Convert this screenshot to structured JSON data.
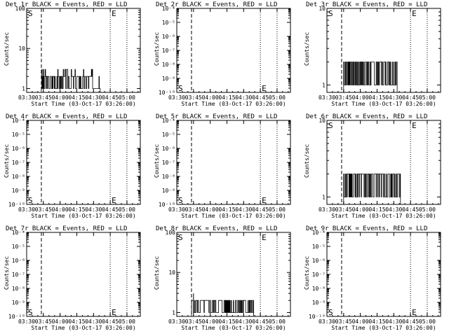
{
  "figure": {
    "colors": {
      "events": "#000000",
      "lld": "#ff0000",
      "background": "#ffffff"
    }
  },
  "chart_data": [
    {
      "type": "line",
      "title": "Det 1r BLACK = Events, RED = LLD",
      "xlabel": "Start Time (03-Oct-17 03:26:00)",
      "ylabel": "Counts/sec",
      "xticks": [
        "03:30",
        "03:45",
        "04:00",
        "04:15",
        "04:30",
        "04:45",
        "05:00"
      ],
      "xlim": [
        3.5,
        5.2
      ],
      "ylog": true,
      "ylim": [
        0.8,
        100
      ],
      "yticks": [
        {
          "v": 1,
          "l": "1"
        },
        {
          "v": 10,
          "l": "10"
        },
        {
          "v": 100,
          "l": "100"
        }
      ],
      "vlines": [
        {
          "x": 3.72,
          "style": "dashed"
        },
        {
          "x": 4.75,
          "style": "dotted"
        },
        {
          "x": 5.0,
          "style": "dotted"
        }
      ],
      "markers": [
        {
          "label": "S",
          "x": 3.5,
          "y": 100
        },
        {
          "label": "E",
          "x": 4.75,
          "y": 100
        }
      ],
      "series": [
        {
          "band": [
            3.72,
            4.6
          ],
          "levels": [
            1,
            2,
            3
          ],
          "seed": 3
        }
      ]
    },
    {
      "type": "line",
      "title": "Det 2r BLACK = Events, RED = LLD",
      "xlabel": "Start Time (03-Oct-17 03:26:00)",
      "ylabel": "Counts/sec",
      "xticks": [
        "03:30",
        "03:45",
        "04:00",
        "04:15",
        "04:30",
        "04:45",
        "05:00"
      ],
      "xlim": [
        3.5,
        5.2
      ],
      "ylog": true,
      "ylim": [
        1e-10,
        0.0001
      ],
      "yticks": [
        {
          "v": 1e-10,
          "l": "10⁻¹⁰"
        },
        {
          "v": 1e-09,
          "l": "10⁻⁹"
        },
        {
          "v": 1e-08,
          "l": "10⁻⁸"
        },
        {
          "v": 1e-07,
          "l": "10⁻⁷"
        },
        {
          "v": 1e-06,
          "l": "10⁻⁶"
        },
        {
          "v": 1e-05,
          "l": "10⁻⁵"
        },
        {
          "v": 0.0001,
          "l": "10⁻⁴"
        }
      ],
      "vlines": [
        {
          "x": 3.72,
          "style": "dashed"
        },
        {
          "x": 4.75,
          "style": "dotted"
        },
        {
          "x": 5.0,
          "style": "dotted"
        }
      ],
      "markers": [
        {
          "label": "S",
          "x": 3.5,
          "y": 1e-10
        },
        {
          "label": "E",
          "x": 4.75,
          "y": 1e-10
        }
      ],
      "series": []
    },
    {
      "type": "line",
      "title": "Det 3r BLACK = Events, RED = LLD",
      "xlabel": "Start Time (03-Oct-17 03:26:00)",
      "ylabel": "Counts/sec",
      "xticks": [
        "03:30",
        "03:45",
        "04:00",
        "04:15",
        "04:30",
        "04:45",
        "05:00"
      ],
      "xlim": [
        3.5,
        5.2
      ],
      "ylog": true,
      "ylim": [
        0.8,
        10
      ],
      "yticks": [
        {
          "v": 1,
          "l": "1"
        },
        {
          "v": 10,
          "l": "10"
        }
      ],
      "vlines": [
        {
          "x": 3.72,
          "style": "dashed"
        },
        {
          "x": 4.75,
          "style": "dotted"
        },
        {
          "x": 5.0,
          "style": "dotted"
        }
      ],
      "markers": [
        {
          "label": "S",
          "x": 3.5,
          "y": 10
        },
        {
          "label": "E",
          "x": 4.75,
          "y": 10
        }
      ],
      "series": [
        {
          "band": [
            3.75,
            4.55
          ],
          "levels": [
            1,
            2
          ],
          "seed": 7
        }
      ]
    },
    {
      "type": "line",
      "title": "Det 4r BLACK = Events, RED = LLD",
      "xlabel": "Start Time (03-Oct-17 03:26:00)",
      "ylabel": "Counts/sec",
      "xticks": [
        "03:30",
        "03:45",
        "04:00",
        "04:15",
        "04:30",
        "04:45",
        "05:00"
      ],
      "xlim": [
        3.5,
        5.2
      ],
      "ylog": true,
      "ylim": [
        1e-10,
        0.0001
      ],
      "yticks": [
        {
          "v": 1e-10,
          "l": "10⁻¹⁰"
        },
        {
          "v": 1e-09,
          "l": "10⁻⁹"
        },
        {
          "v": 1e-08,
          "l": "10⁻⁸"
        },
        {
          "v": 1e-07,
          "l": "10⁻⁷"
        },
        {
          "v": 1e-06,
          "l": "10⁻⁶"
        },
        {
          "v": 1e-05,
          "l": "10⁻⁵"
        },
        {
          "v": 0.0001,
          "l": "10⁻⁴"
        }
      ],
      "vlines": [
        {
          "x": 3.72,
          "style": "dashed"
        },
        {
          "x": 4.75,
          "style": "dotted"
        },
        {
          "x": 5.0,
          "style": "dotted"
        }
      ],
      "markers": [
        {
          "label": "S",
          "x": 3.5,
          "y": 1e-10
        },
        {
          "label": "E",
          "x": 4.75,
          "y": 1e-10
        }
      ],
      "series": []
    },
    {
      "type": "line",
      "title": "Det 5r BLACK = Events, RED = LLD",
      "xlabel": "Start Time (03-Oct-17 03:26:00)",
      "ylabel": "Counts/sec",
      "xticks": [
        "03:30",
        "03:45",
        "04:00",
        "04:15",
        "04:30",
        "04:45",
        "05:00"
      ],
      "xlim": [
        3.5,
        5.2
      ],
      "ylog": true,
      "ylim": [
        1e-10,
        0.0001
      ],
      "yticks": [
        {
          "v": 1e-10,
          "l": "10⁻¹⁰"
        },
        {
          "v": 1e-09,
          "l": "10⁻⁹"
        },
        {
          "v": 1e-08,
          "l": "10⁻⁸"
        },
        {
          "v": 1e-07,
          "l": "10⁻⁷"
        },
        {
          "v": 1e-06,
          "l": "10⁻⁶"
        },
        {
          "v": 1e-05,
          "l": "10⁻⁵"
        },
        {
          "v": 0.0001,
          "l": "10⁻⁴"
        }
      ],
      "vlines": [
        {
          "x": 3.72,
          "style": "dashed"
        },
        {
          "x": 4.75,
          "style": "dotted"
        },
        {
          "x": 5.0,
          "style": "dotted"
        }
      ],
      "markers": [
        {
          "label": "S",
          "x": 3.5,
          "y": 1e-10
        },
        {
          "label": "E",
          "x": 4.75,
          "y": 1e-10
        }
      ],
      "series": []
    },
    {
      "type": "line",
      "title": "Det 6r BLACK = Events, RED = LLD",
      "xlabel": "Start Time (03-Oct-17 03:26:00)",
      "ylabel": "Counts/sec",
      "xticks": [
        "03:30",
        "03:45",
        "04:00",
        "04:15",
        "04:30",
        "04:45",
        "05:00"
      ],
      "xlim": [
        3.5,
        5.2
      ],
      "ylog": true,
      "ylim": [
        0.8,
        10
      ],
      "yticks": [
        {
          "v": 1,
          "l": "1"
        },
        {
          "v": 10,
          "l": "10"
        }
      ],
      "vlines": [
        {
          "x": 3.72,
          "style": "dashed"
        },
        {
          "x": 4.75,
          "style": "dotted"
        },
        {
          "x": 5.0,
          "style": "dotted"
        }
      ],
      "markers": [
        {
          "label": "S",
          "x": 3.5,
          "y": 10
        },
        {
          "label": "E",
          "x": 4.75,
          "y": 10
        }
      ],
      "series": [
        {
          "band": [
            3.75,
            4.6
          ],
          "levels": [
            1,
            2
          ],
          "seed": 11
        }
      ]
    },
    {
      "type": "line",
      "title": "Det 7r BLACK = Events, RED = LLD",
      "xlabel": "Start Time (03-Oct-17 03:26:00)",
      "ylabel": "Counts/sec",
      "xticks": [
        "03:30",
        "03:45",
        "04:00",
        "04:15",
        "04:30",
        "04:45",
        "05:00"
      ],
      "xlim": [
        3.5,
        5.2
      ],
      "ylog": true,
      "ylim": [
        1e-10,
        0.0001
      ],
      "yticks": [
        {
          "v": 1e-10,
          "l": "10⁻¹⁰"
        },
        {
          "v": 1e-09,
          "l": "10⁻⁹"
        },
        {
          "v": 1e-08,
          "l": "10⁻⁸"
        },
        {
          "v": 1e-07,
          "l": "10⁻⁷"
        },
        {
          "v": 1e-06,
          "l": "10⁻⁶"
        },
        {
          "v": 1e-05,
          "l": "10⁻⁵"
        },
        {
          "v": 0.0001,
          "l": "10⁻⁴"
        }
      ],
      "vlines": [
        {
          "x": 3.72,
          "style": "dashed"
        },
        {
          "x": 4.75,
          "style": "dotted"
        },
        {
          "x": 5.0,
          "style": "dotted"
        }
      ],
      "markers": [
        {
          "label": "S",
          "x": 3.5,
          "y": 1e-10
        },
        {
          "label": "E",
          "x": 4.75,
          "y": 1e-10
        }
      ],
      "series": []
    },
    {
      "type": "line",
      "title": "Det 8r BLACK = Events, RED = LLD",
      "xlabel": "Start Time (03-Oct-17 03:26:00)",
      "ylabel": "Counts/sec",
      "xticks": [
        "03:30",
        "03:45",
        "04:00",
        "04:15",
        "04:30",
        "04:45",
        "05:00"
      ],
      "xlim": [
        3.5,
        5.2
      ],
      "ylog": true,
      "ylim": [
        0.8,
        100
      ],
      "yticks": [
        {
          "v": 1,
          "l": "1"
        },
        {
          "v": 10,
          "l": "10"
        },
        {
          "v": 100,
          "l": "100"
        }
      ],
      "vlines": [
        {
          "x": 3.72,
          "style": "dashed"
        },
        {
          "x": 4.75,
          "style": "dotted"
        },
        {
          "x": 5.0,
          "style": "dotted"
        }
      ],
      "markers": [
        {
          "label": "S",
          "x": 3.5,
          "y": 100
        },
        {
          "label": "E",
          "x": 4.75,
          "y": 100
        }
      ],
      "series": [
        {
          "band": [
            3.72,
            4.65
          ],
          "levels": [
            1,
            2
          ],
          "seed": 5,
          "spike": {
            "x": 3.75,
            "y": 3
          }
        }
      ]
    },
    {
      "type": "line",
      "title": "Det 9r BLACK = Events, RED = LLD",
      "xlabel": "Start Time (03-Oct-17 03:26:00)",
      "ylabel": "Counts/sec",
      "xticks": [
        "03:30",
        "03:45",
        "04:00",
        "04:15",
        "04:30",
        "04:45",
        "05:00"
      ],
      "xlim": [
        3.5,
        5.2
      ],
      "ylog": true,
      "ylim": [
        1e-10,
        0.0001
      ],
      "yticks": [
        {
          "v": 1e-10,
          "l": "10⁻¹⁰"
        },
        {
          "v": 1e-09,
          "l": "10⁻⁹"
        },
        {
          "v": 1e-08,
          "l": "10⁻⁸"
        },
        {
          "v": 1e-07,
          "l": "10⁻⁷"
        },
        {
          "v": 1e-06,
          "l": "10⁻⁶"
        },
        {
          "v": 1e-05,
          "l": "10⁻⁵"
        },
        {
          "v": 0.0001,
          "l": "10⁻⁴"
        }
      ],
      "vlines": [
        {
          "x": 3.72,
          "style": "dashed"
        },
        {
          "x": 4.75,
          "style": "dotted"
        },
        {
          "x": 5.0,
          "style": "dotted"
        }
      ],
      "markers": [
        {
          "label": "S",
          "x": 3.5,
          "y": 1e-10
        },
        {
          "label": "E",
          "x": 4.75,
          "y": 1e-10
        }
      ],
      "series": []
    }
  ]
}
